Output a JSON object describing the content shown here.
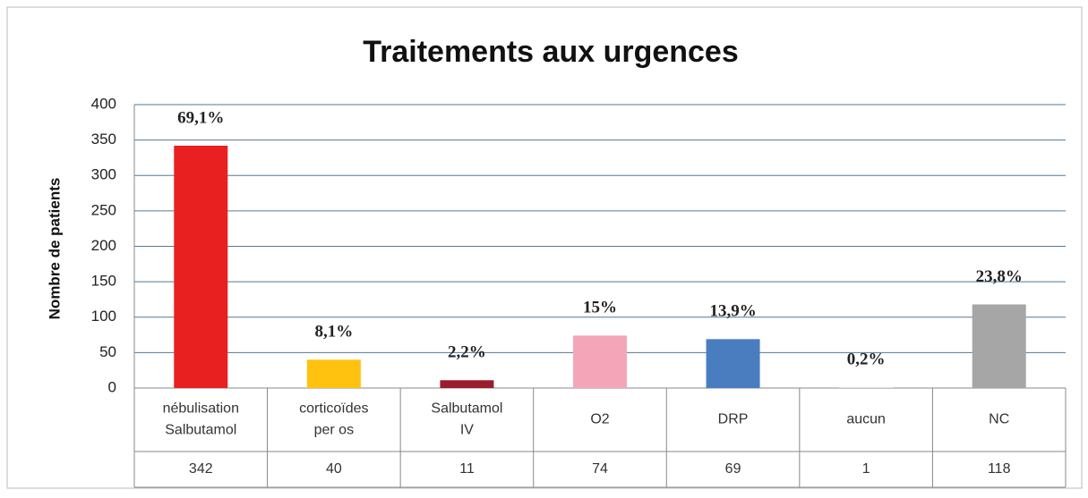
{
  "chart_data": {
    "type": "bar",
    "title": "Traitements aux urgences",
    "y_label": "Nombre de patients",
    "categories": [
      [
        "nébulisation",
        "Salbutamol"
      ],
      [
        "corticoïdes",
        "per os"
      ],
      [
        "Salbutamol",
        "IV"
      ],
      [
        "O2"
      ],
      [
        "DRP"
      ],
      [
        "aucun"
      ],
      [
        "NC"
      ]
    ],
    "values": [
      342,
      40,
      11,
      74,
      69,
      1,
      118
    ],
    "percent_labels": [
      "69,1%",
      "8,1%",
      "2,2%",
      "15%",
      "13,9%",
      "0,2%",
      "23,8%"
    ],
    "colors": [
      "#e8201f",
      "#ffc20e",
      "#9b1c2c",
      "#f4a6b8",
      "#4a7cc0",
      "#d9d9d9",
      "#a6a6a6"
    ],
    "ylim": [
      0,
      400
    ],
    "yticks": [
      0,
      50,
      100,
      150,
      200,
      250,
      300,
      350,
      400
    ],
    "grid": true
  }
}
